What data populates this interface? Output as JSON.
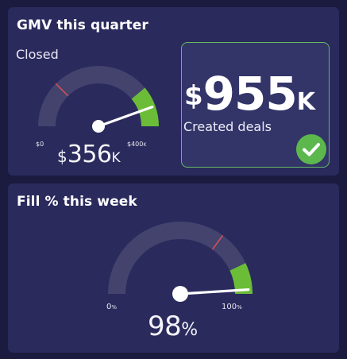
{
  "gmv_card": {
    "title": "GMV this quarter",
    "subtitle": "Closed",
    "gauge": {
      "min_label": "$0",
      "max_label": "$400",
      "max_label_unit": "K",
      "value_fraction": 0.89,
      "target_fraction": 0.25,
      "green_zone_start_fraction": 0.78
    },
    "value": {
      "currency": "$",
      "number": "356",
      "unit": "K"
    },
    "created": {
      "value": {
        "currency": "$",
        "number": "955",
        "unit": "K"
      },
      "label": "Created deals",
      "check_icon": "check-circle-icon"
    }
  },
  "fill_card": {
    "title": "Fill % this week",
    "gauge": {
      "min_label": "0",
      "min_label_unit": "%",
      "max_label": "100",
      "max_label_unit": "%",
      "value_fraction": 0.98,
      "target_fraction": 0.7,
      "green_zone_start_fraction": 0.86
    },
    "value": {
      "number": "98",
      "unit": "%"
    }
  },
  "colors": {
    "background": "#1b1a3f",
    "card": "#2b2a5d",
    "gauge_track": "#43436e",
    "gauge_green": "#6bbd38",
    "target_red": "#d04f58",
    "needle": "#ffffff",
    "success_green": "#5cb84d"
  }
}
